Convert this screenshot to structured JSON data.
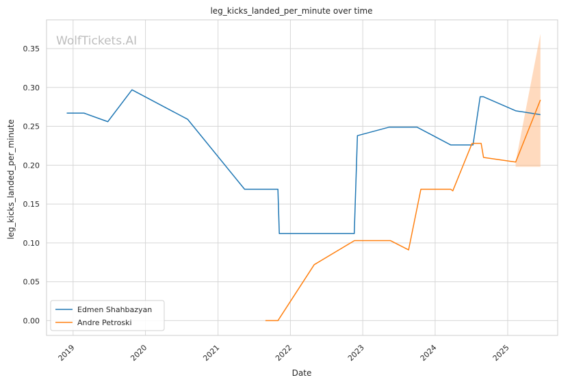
{
  "watermark": "WolfTickets.AI",
  "chart_data": {
    "type": "line",
    "title": "leg_kicks_landed_per_minute over time",
    "xlabel": "Date",
    "ylabel": "leg_kicks_landed_per_minute",
    "xlim": [
      "2018-08-20",
      "2025-09-10"
    ],
    "ylim": [
      -0.019,
      0.387
    ],
    "x_ticks": [
      "2019-01-01",
      "2020-01-01",
      "2021-01-01",
      "2022-01-01",
      "2023-01-01",
      "2024-01-01",
      "2025-01-01"
    ],
    "x_tick_labels": [
      "2019",
      "2020",
      "2021",
      "2022",
      "2023",
      "2024",
      "2025"
    ],
    "y_ticks": [
      0.0,
      0.05,
      0.1,
      0.15,
      0.2,
      0.25,
      0.3,
      0.35
    ],
    "y_tick_labels": [
      "0.00",
      "0.05",
      "0.10",
      "0.15",
      "0.20",
      "0.25",
      "0.30",
      "0.35"
    ],
    "grid": true,
    "legend_position": "lower-left",
    "series": [
      {
        "name": "Edmen Shahbazyan",
        "color": "#1f77b4",
        "points": [
          [
            "2018-11-30",
            0.267
          ],
          [
            "2019-02-25",
            0.267
          ],
          [
            "2019-06-25",
            0.256
          ],
          [
            "2019-10-25",
            0.297
          ],
          [
            "2020-08-01",
            0.259
          ],
          [
            "2021-05-15",
            0.169
          ],
          [
            "2021-10-30",
            0.169
          ],
          [
            "2021-11-06",
            0.112
          ],
          [
            "2022-11-19",
            0.112
          ],
          [
            "2022-12-05",
            0.238
          ],
          [
            "2023-05-15",
            0.249
          ],
          [
            "2023-10-01",
            0.249
          ],
          [
            "2024-03-20",
            0.226
          ],
          [
            "2024-07-10",
            0.226
          ],
          [
            "2024-08-15",
            0.288
          ],
          [
            "2024-09-01",
            0.288
          ],
          [
            "2025-02-10",
            0.27
          ],
          [
            "2025-06-15",
            0.265
          ]
        ]
      },
      {
        "name": "Andre Petroski",
        "color": "#ff7f0e",
        "points": [
          [
            "2021-08-28",
            0.0
          ],
          [
            "2021-10-30",
            0.0
          ],
          [
            "2022-05-01",
            0.072
          ],
          [
            "2022-11-20",
            0.103
          ],
          [
            "2023-05-20",
            0.103
          ],
          [
            "2023-08-20",
            0.091
          ],
          [
            "2023-10-21",
            0.169
          ],
          [
            "2024-03-20",
            0.169
          ],
          [
            "2024-03-30",
            0.167
          ],
          [
            "2024-07-05",
            0.228
          ],
          [
            "2024-08-20",
            0.228
          ],
          [
            "2024-09-01",
            0.21
          ],
          [
            "2025-02-10",
            0.204
          ],
          [
            "2025-06-15",
            0.284
          ]
        ]
      }
    ],
    "confidence_band": {
      "series": "Andre Petroski",
      "color": "#ffbb88",
      "upper": [
        [
          "2025-02-10",
          0.204
        ],
        [
          "2025-06-15",
          0.369
        ]
      ],
      "lower": [
        [
          "2025-02-10",
          0.198
        ],
        [
          "2025-06-15",
          0.198
        ]
      ]
    }
  }
}
